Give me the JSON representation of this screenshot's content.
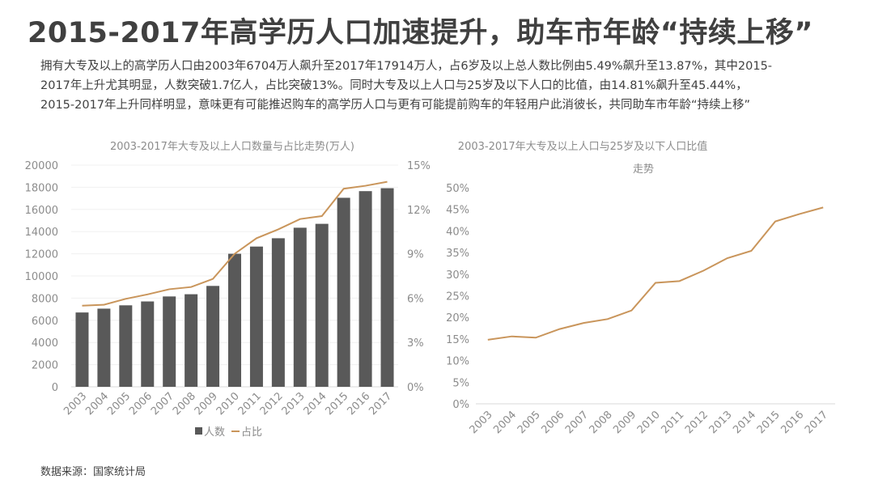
{
  "header": {
    "title": "2015-2017年高学历人口加速提升，助车市年龄“持续上移”",
    "description": [
      "拥有大专及以上的高学历人口由2003年6704万人飙升至2017年17914万人，占6岁及以上总人数比例由5.49%飙升至13.87%，其中2015-",
      "2017年上升尤其明显，人数突破1.7亿人，占比突破13%。同时大专及以上人口与25岁及以下人口的比值，由14.81%飙升至45.44%，",
      "2015-2017年上升同样明显，意味更有可能推迟购车的高学历人口与更有可能提前购车的年轻用户此消彼长，共同助车市年龄“持续上移”"
    ]
  },
  "source": "数据来源：国家统计局",
  "colors": {
    "bar": "#595959",
    "line": "#c9955b",
    "grid": "#f0f0f0"
  },
  "chart_data": [
    {
      "type": "bar+line",
      "title": "2003-2017年大专及以上人口数量与占比走势(万人)",
      "categories": [
        "2003",
        "2004",
        "2005",
        "2006",
        "2007",
        "2008",
        "2009",
        "2010",
        "2011",
        "2012",
        "2013",
        "2014",
        "2015",
        "2016",
        "2017"
      ],
      "series": [
        {
          "name": "人数",
          "type": "bar",
          "axis": "left",
          "values": [
            6704,
            7050,
            7350,
            7700,
            8150,
            8350,
            9100,
            12000,
            12650,
            13400,
            14350,
            14700,
            17050,
            17650,
            17914
          ]
        },
        {
          "name": "占比",
          "type": "line",
          "axis": "right",
          "values": [
            5.49,
            5.55,
            5.95,
            6.25,
            6.6,
            6.75,
            7.3,
            9.0,
            10.05,
            10.65,
            11.35,
            11.55,
            13.4,
            13.6,
            13.87
          ]
        }
      ],
      "ylim": [
        0,
        20000
      ],
      "yticks": [
        "0",
        "2000",
        "4000",
        "6000",
        "8000",
        "10000",
        "12000",
        "14000",
        "16000",
        "18000",
        "20000"
      ],
      "y2lim": [
        0,
        15
      ],
      "y2ticks": [
        "0%",
        "3%",
        "6%",
        "9%",
        "12%",
        "15%"
      ],
      "legend": [
        "人数",
        "占比"
      ],
      "legend_position": "bottom"
    },
    {
      "type": "line",
      "title": [
        "2003-2017年大专及以上人口与25岁及以下人口比值",
        "走势"
      ],
      "categories": [
        "2003",
        "2004",
        "2005",
        "2006",
        "2007",
        "2008",
        "2009",
        "2010",
        "2011",
        "2012",
        "2013",
        "2014",
        "2015",
        "2016",
        "2017"
      ],
      "values": [
        14.81,
        15.6,
        15.3,
        17.3,
        18.7,
        19.6,
        21.6,
        28.0,
        28.4,
        30.8,
        33.7,
        35.4,
        42.2,
        43.9,
        45.44
      ],
      "ylim": [
        0,
        50
      ],
      "yticks": [
        "0%",
        "5%",
        "10%",
        "15%",
        "20%",
        "25%",
        "30%",
        "35%",
        "40%",
        "45%",
        "50%"
      ]
    }
  ]
}
